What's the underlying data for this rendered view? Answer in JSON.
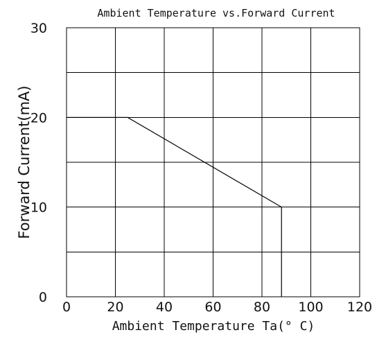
{
  "chart_data": {
    "type": "line",
    "title": "Ambient Temperature vs.Forward Current",
    "xlabel": "Ambient Temperature Ta(° C)",
    "ylabel": "Forward Current(mA)",
    "xlim": [
      0,
      120
    ],
    "ylim": [
      0,
      30
    ],
    "xticks": [
      "0",
      "20",
      "40",
      "60",
      "80",
      "100",
      "120"
    ],
    "yticks": [
      "0",
      "10",
      "20",
      "30"
    ],
    "grid": true,
    "series": [
      {
        "x": [
          0,
          25,
          88,
          88
        ],
        "y": [
          20,
          20,
          10,
          0
        ]
      }
    ]
  }
}
